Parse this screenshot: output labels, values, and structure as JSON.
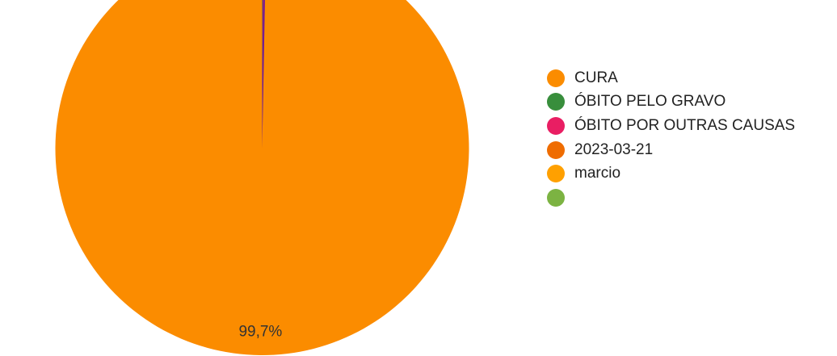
{
  "chart_data": {
    "type": "pie",
    "title": "",
    "legend_position": "right",
    "slices": [
      {
        "label": "CURA",
        "value": 99.7,
        "color": "#FB8C00"
      },
      {
        "label": "ÓBITO PELO GRAVO",
        "value": 0.1,
        "color": "#388E3C"
      },
      {
        "label": "ÓBITO POR OUTRAS CAUSAS",
        "value": 0.1,
        "color": "#E91E63"
      },
      {
        "label": "2023-03-21",
        "value": 0.05,
        "color": "#EF6C00"
      },
      {
        "label": "marcio",
        "value": 0.03,
        "color": "#FFA000"
      },
      {
        "label": "",
        "value": 0.02,
        "color": "#7CB342"
      }
    ],
    "data_labels": [
      {
        "slice": 0,
        "text": "99,7%"
      }
    ]
  }
}
